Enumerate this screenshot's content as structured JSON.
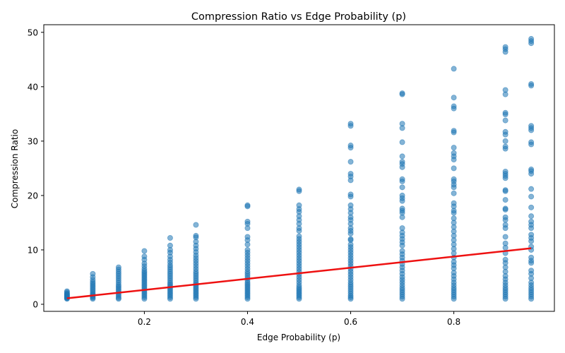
{
  "chart_data": {
    "type": "scatter",
    "title": "Compression Ratio vs Edge Probability (p)",
    "xlabel": "Edge Probability (p)",
    "ylabel": "Compression Ratio",
    "xlim": [
      0.005,
      0.995
    ],
    "ylim": [
      -1.3,
      51.4
    ],
    "xticks": [
      0.2,
      0.4,
      0.6,
      0.8
    ],
    "xtick_labels": [
      "0.2",
      "0.4",
      "0.6",
      "0.8"
    ],
    "yticks": [
      0,
      10,
      20,
      30,
      40,
      50
    ],
    "ytick_labels": [
      "0",
      "10",
      "20",
      "30",
      "40",
      "50"
    ],
    "grid": false,
    "legend": "none",
    "colors": {
      "points": "#1f77b4",
      "trend": "#ee1111",
      "axes": "#000000"
    },
    "point_alpha": 0.55,
    "series": [
      {
        "kind": "scatter",
        "points": [
          {
            "x": 0.05,
            "values": [
              1.0,
              1.1,
              1.2,
              1.3,
              1.4,
              1.5,
              1.6,
              1.7,
              1.8,
              1.9,
              2.0,
              2.2,
              2.4
            ]
          },
          {
            "x": 0.1,
            "values": [
              1.0,
              1.2,
              1.4,
              1.6,
              1.8,
              2.0,
              2.3,
              2.6,
              2.9,
              3.2,
              3.5,
              3.8,
              4.1,
              4.5,
              5.0,
              5.6
            ]
          },
          {
            "x": 0.15,
            "values": [
              1.0,
              1.2,
              1.5,
              1.8,
              2.1,
              2.4,
              2.7,
              3.0,
              3.3,
              3.6,
              4.0,
              4.4,
              4.8,
              5.2,
              5.6,
              6.0,
              6.4,
              6.8
            ]
          },
          {
            "x": 0.2,
            "values": [
              1.0,
              1.3,
              1.6,
              1.9,
              2.2,
              2.5,
              2.8,
              3.1,
              3.4,
              3.7,
              4.0,
              4.3,
              4.6,
              4.9,
              5.2,
              5.5,
              5.8,
              6.1,
              6.5,
              7.0,
              7.5,
              8.2,
              8.8,
              9.8
            ]
          },
          {
            "x": 0.25,
            "values": [
              1.0,
              1.3,
              1.6,
              1.9,
              2.2,
              2.5,
              2.8,
              3.1,
              3.4,
              3.7,
              4.0,
              4.4,
              4.8,
              5.2,
              5.6,
              6.0,
              6.4,
              6.8,
              7.2,
              7.7,
              8.2,
              8.8,
              9.5,
              10.0,
              10.8,
              12.2
            ]
          },
          {
            "x": 0.3,
            "values": [
              1.0,
              1.3,
              1.6,
              1.9,
              2.2,
              2.5,
              2.8,
              3.1,
              3.4,
              3.7,
              4.0,
              4.4,
              4.8,
              5.2,
              5.6,
              6.0,
              6.5,
              7.0,
              7.5,
              8.0,
              8.5,
              9.0,
              9.6,
              10.2,
              10.8,
              11.5,
              12.3,
              12.6,
              14.6
            ]
          },
          {
            "x": 0.4,
            "values": [
              1.0,
              1.3,
              1.6,
              1.9,
              2.2,
              2.5,
              2.8,
              3.1,
              3.4,
              3.7,
              4.0,
              4.4,
              4.8,
              5.2,
              5.6,
              6.0,
              6.5,
              7.0,
              7.5,
              8.0,
              8.5,
              9.0,
              9.5,
              10.0,
              11.0,
              11.8,
              12.4,
              14.0,
              14.8,
              15.2,
              18.0,
              18.2
            ]
          },
          {
            "x": 0.5,
            "values": [
              1.0,
              1.3,
              1.6,
              1.9,
              2.2,
              2.5,
              2.8,
              3.1,
              3.5,
              4.0,
              4.5,
              5.0,
              5.5,
              6.0,
              6.5,
              7.0,
              7.5,
              8.0,
              8.5,
              9.0,
              9.5,
              10.0,
              10.5,
              11.0,
              11.5,
              12.0,
              12.5,
              13.5,
              14.0,
              14.8,
              15.5,
              16.2,
              17.0,
              17.5,
              18.2,
              20.8,
              21.1
            ]
          },
          {
            "x": 0.6,
            "values": [
              1.0,
              1.3,
              1.6,
              2.0,
              2.4,
              2.8,
              3.2,
              3.6,
              4.0,
              4.5,
              5.0,
              5.5,
              6.0,
              6.5,
              7.0,
              7.5,
              8.0,
              8.5,
              9.0,
              9.5,
              10.0,
              10.5,
              11.0,
              11.8,
              12.0,
              13.0,
              13.5,
              14.0,
              14.8,
              15.5,
              16.0,
              16.8,
              17.5,
              18.2,
              19.8,
              20.2,
              22.8,
              23.5,
              24.0,
              26.2,
              28.8,
              29.2,
              32.8,
              33.2
            ]
          },
          {
            "x": 0.7,
            "values": [
              1.0,
              1.4,
              1.8,
              2.2,
              2.6,
              3.0,
              3.5,
              4.0,
              4.5,
              5.0,
              5.6,
              6.2,
              6.8,
              7.4,
              8.0,
              8.6,
              9.2,
              9.8,
              10.8,
              11.4,
              12.0,
              12.6,
              13.2,
              14.0,
              16.0,
              16.8,
              17.2,
              17.6,
              19.0,
              19.5,
              20.0,
              21.5,
              22.6,
              23.0,
              25.2,
              25.8,
              26.2,
              27.2,
              29.8,
              32.4,
              33.2,
              38.6,
              38.8
            ]
          },
          {
            "x": 0.8,
            "values": [
              1.0,
              1.4,
              1.8,
              2.2,
              2.6,
              3.0,
              3.5,
              4.0,
              4.6,
              5.2,
              5.8,
              6.6,
              7.2,
              7.8,
              8.6,
              9.4,
              10.2,
              11.0,
              11.8,
              12.6,
              13.4,
              14.2,
              15.0,
              15.8,
              16.8,
              17.2,
              18.0,
              18.6,
              20.4,
              21.5,
              22.0,
              22.6,
              23.0,
              25.0,
              26.6,
              27.2,
              27.8,
              28.8,
              31.6,
              31.9,
              36.0,
              36.4,
              38.0,
              43.3
            ]
          },
          {
            "x": 0.9,
            "values": [
              1.0,
              1.4,
              1.8,
              2.2,
              2.6,
              3.0,
              3.5,
              4.0,
              4.6,
              5.2,
              6.0,
              6.8,
              7.6,
              8.2,
              9.4,
              10.4,
              11.2,
              12.4,
              14.0,
              14.6,
              15.5,
              16.0,
              17.4,
              17.6,
              19.2,
              20.8,
              21.0,
              23.2,
              23.6,
              24.0,
              24.4,
              28.6,
              29.0,
              30.0,
              31.2,
              31.7,
              33.8,
              34.9,
              35.2,
              38.6,
              39.4,
              46.4,
              46.9,
              47.3
            ]
          },
          {
            "x": 0.95,
            "values": [
              1.0,
              1.4,
              1.8,
              2.2,
              2.6,
              3.0,
              3.5,
              4.0,
              4.8,
              5.6,
              6.2,
              7.6,
              8.0,
              8.6,
              10.0,
              10.6,
              11.6,
              12.2,
              12.8,
              14.0,
              14.6,
              15.2,
              16.2,
              17.8,
              19.8,
              21.2,
              24.0,
              24.5,
              24.8,
              29.4,
              29.8,
              32.0,
              32.4,
              32.8,
              40.2,
              40.5,
              48.0,
              48.4,
              48.8
            ]
          }
        ]
      },
      {
        "kind": "line",
        "x": [
          0.05,
          0.95
        ],
        "y": [
          1.1,
          10.3
        ]
      }
    ]
  }
}
